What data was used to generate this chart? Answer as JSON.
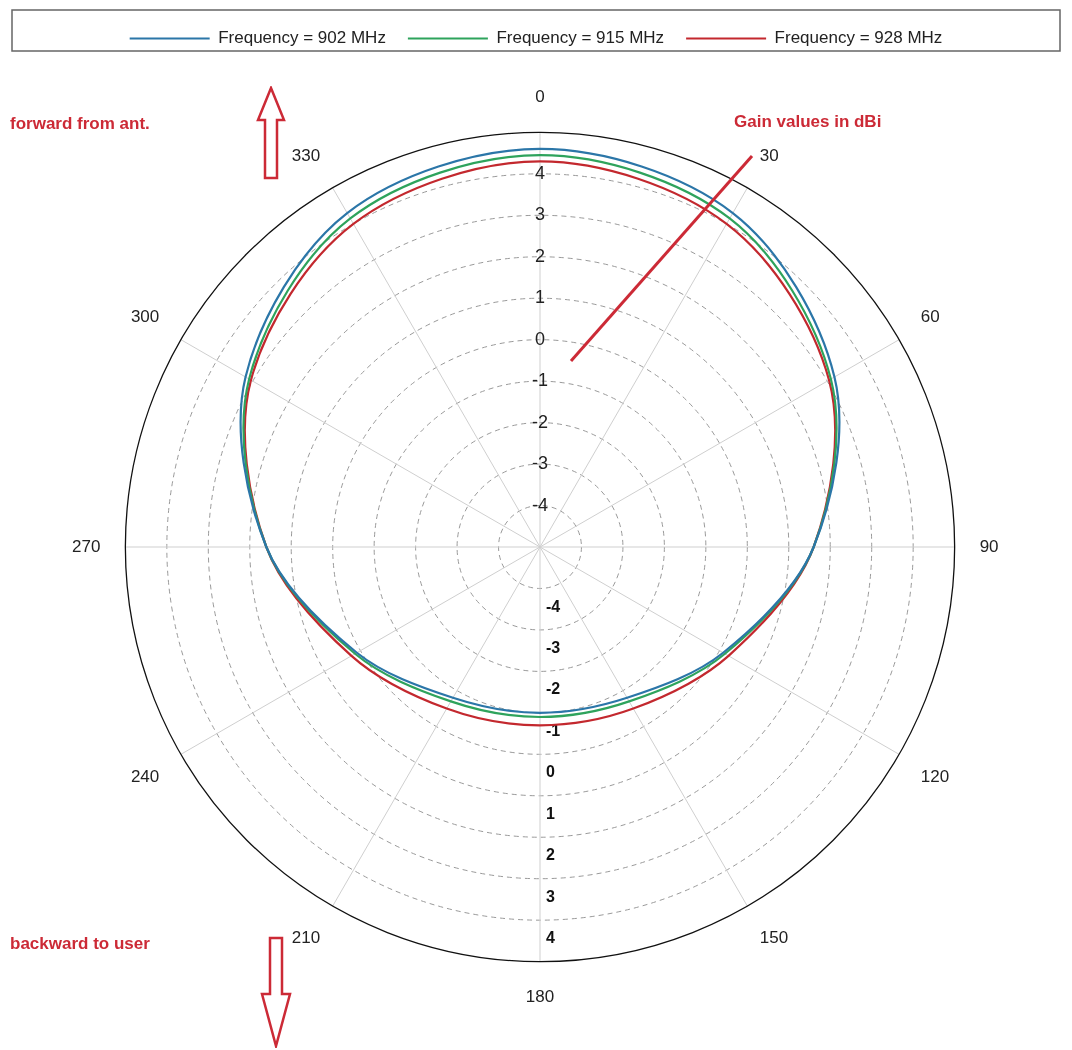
{
  "chart_data": {
    "type": "radar",
    "categories": [
      "0",
      "30",
      "60",
      "90",
      "120",
      "150",
      "180",
      "210",
      "240",
      "270",
      "300",
      "330"
    ],
    "series": [
      {
        "name": "Frequency = 902 MHz",
        "color": "#2b76a8",
        "values": [
          4.6,
          4.3,
          3.2,
          1.6,
          0.1,
          -0.8,
          -1.0,
          -0.8,
          0.1,
          1.6,
          3.2,
          4.3
        ]
      },
      {
        "name": "Frequency = 915 MHz",
        "color": "#2ea35c",
        "values": [
          4.45,
          4.15,
          3.1,
          1.6,
          0.15,
          -0.7,
          -0.9,
          -0.7,
          0.15,
          1.6,
          3.1,
          4.15
        ]
      },
      {
        "name": "Frequency = 928 MHz",
        "color": "#c3282e",
        "values": [
          4.3,
          4.0,
          3.05,
          1.6,
          0.25,
          -0.5,
          -0.7,
          -0.5,
          0.25,
          1.6,
          3.05,
          4.0
        ]
      }
    ],
    "ylim": [
      -5,
      5
    ],
    "yticks": [
      -4,
      -3,
      -2,
      -1,
      0,
      1,
      2,
      3,
      4
    ],
    "grid": true,
    "legend": "top",
    "marker": "none",
    "line_style": "solid",
    "annotations": [
      "forward from ant.",
      "backward to user",
      "Gain values in dBi",
      "-4",
      "-3",
      "-2",
      "-1",
      "0",
      "1",
      "2",
      "3",
      "4"
    ]
  }
}
